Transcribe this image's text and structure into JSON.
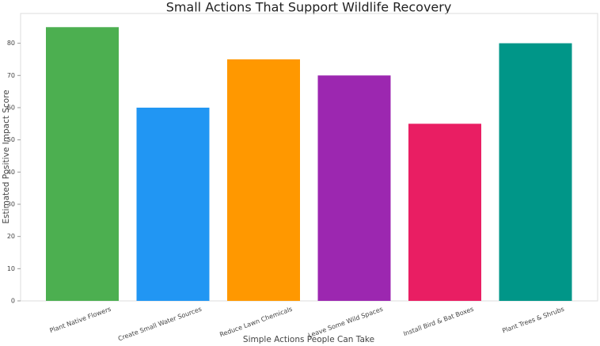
{
  "chart_data": {
    "type": "bar",
    "title": "Small Actions That Support Wildlife Recovery",
    "xlabel": "Simple Actions People Can Take",
    "ylabel": "Estimated Positive Impact Score",
    "categories": [
      "Plant Native Flowers",
      "Create Small Water Sources",
      "Reduce Lawn Chemicals",
      "Leave Some Wild Spaces",
      "Install Bird & Bat Boxes",
      "Plant Trees & Shrubs"
    ],
    "values": [
      85,
      60,
      75,
      70,
      55,
      80
    ],
    "colors": [
      "#4caf50",
      "#2196f3",
      "#ff9800",
      "#9c27b0",
      "#e91e63",
      "#009688"
    ],
    "ylim": [
      0,
      89.25
    ],
    "yticks": [
      0,
      10,
      20,
      30,
      40,
      50,
      60,
      70,
      80
    ]
  }
}
